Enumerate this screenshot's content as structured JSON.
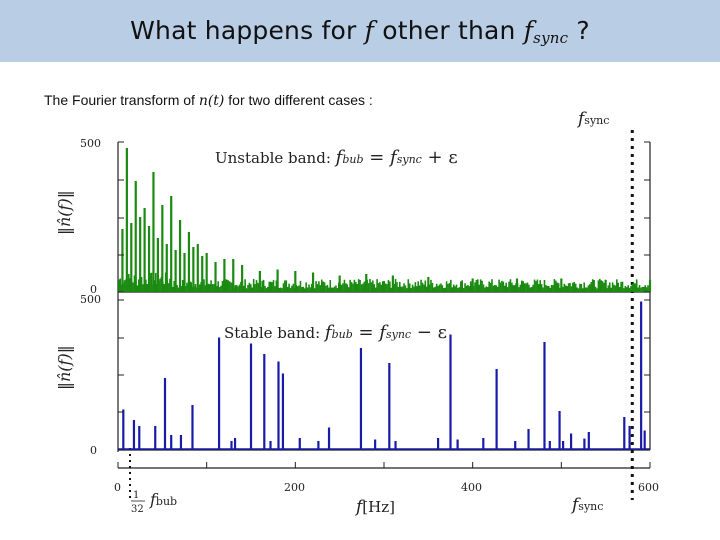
{
  "slide": {
    "title_pre": "What happens for ",
    "title_f": "f",
    "title_mid": " other than ",
    "title_f2": "f",
    "title_sub": "sync",
    "title_post": " ?",
    "subtitle_pre": "The Fourier transform of ",
    "subtitle_math": "n(t)",
    "subtitle_post": " for two different cases :"
  },
  "colors": {
    "header_bg": "#b9cde5",
    "unstable": "#1a8a10",
    "stable": "#1a1aa8"
  },
  "figure": {
    "top_axis_label": "f_sync",
    "xlabel": "f [Hz]",
    "bottom_marker_left": "1/32 f_bub",
    "bottom_marker_right": "f_sync",
    "sync_line_hz": 580
  },
  "chart_data": [
    {
      "type": "bar",
      "title": "Unstable band: f_bub = f_sync + ε",
      "ylabel": "||n̂(f)||",
      "xlim": [
        0,
        600
      ],
      "ylim": [
        0,
        500
      ],
      "y_ticks": [
        0,
        500
      ],
      "x_ticks": [
        0,
        200,
        400,
        600
      ],
      "color": "#1a8a10",
      "peaks_x": [
        5,
        10,
        15,
        20,
        25,
        30,
        35,
        40,
        45,
        50,
        55,
        60,
        65,
        70,
        75,
        80,
        85,
        90,
        95,
        100,
        110,
        120,
        130,
        140,
        160,
        180,
        200,
        220,
        250,
        280,
        310,
        350,
        400,
        450,
        500,
        550,
        600
      ],
      "peaks_y": [
        210,
        480,
        230,
        370,
        250,
        280,
        220,
        400,
        180,
        290,
        160,
        320,
        140,
        240,
        130,
        200,
        150,
        160,
        120,
        130,
        100,
        110,
        110,
        90,
        70,
        75,
        70,
        65,
        55,
        60,
        55,
        50,
        45,
        45,
        45,
        40,
        40
      ],
      "noise_floor": 35
    },
    {
      "type": "bar",
      "title": "Stable band: f_bub = f_sync − ε",
      "ylabel": "||n̂(f)||",
      "xlim": [
        0,
        600
      ],
      "ylim": [
        0,
        500
      ],
      "y_ticks": [
        0,
        500
      ],
      "x_ticks": [
        0,
        200,
        400,
        600
      ],
      "color": "#1a1aa8",
      "peaks_x": [
        6,
        18,
        24,
        42,
        53,
        60,
        71,
        84,
        114,
        128,
        132,
        150,
        165,
        172,
        181,
        186,
        205,
        226,
        238,
        274,
        290,
        306,
        313,
        361,
        375,
        383,
        412,
        427,
        448,
        463,
        481,
        487,
        498,
        502,
        511,
        526,
        531,
        571,
        577,
        590,
        594
      ],
      "peaks_y": [
        135,
        100,
        80,
        80,
        240,
        50,
        50,
        150,
        375,
        30,
        40,
        355,
        320,
        30,
        295,
        255,
        40,
        30,
        75,
        340,
        35,
        290,
        30,
        40,
        385,
        35,
        40,
        270,
        30,
        70,
        360,
        30,
        130,
        30,
        55,
        38,
        60,
        110,
        80,
        495,
        65
      ]
    }
  ]
}
